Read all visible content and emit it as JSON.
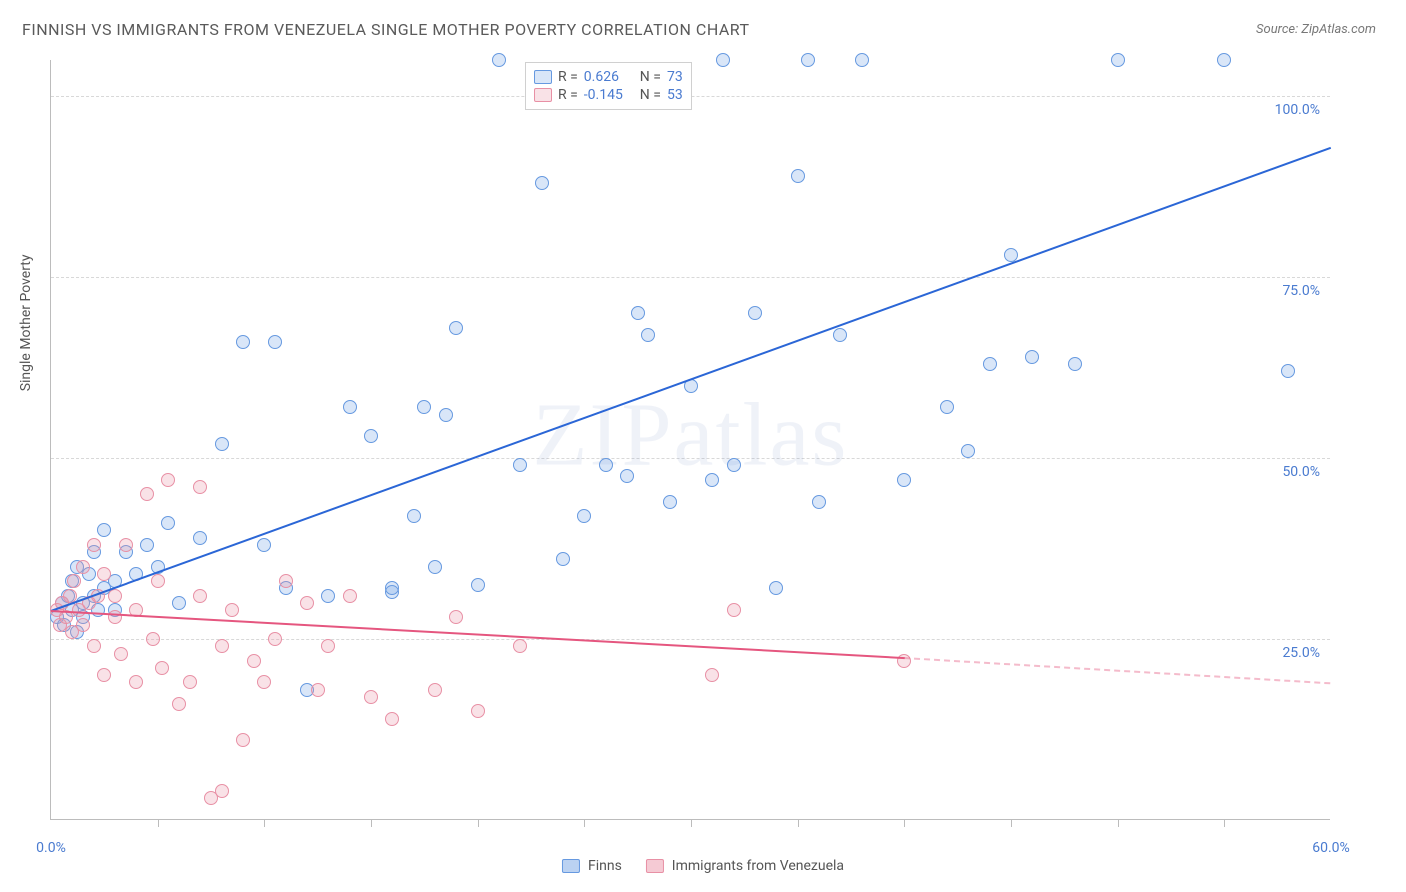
{
  "title": "FINNISH VS IMMIGRANTS FROM VENEZUELA SINGLE MOTHER POVERTY CORRELATION CHART",
  "source": "Source: ZipAtlas.com",
  "watermark": "ZIPatlas",
  "chart": {
    "type": "scatter",
    "xlim": [
      0,
      60
    ],
    "ylim": [
      0,
      105
    ],
    "xlabel_min": "0.0%",
    "xlabel_max": "60.0%",
    "xtick_positions": [
      5,
      10,
      15,
      20,
      25,
      30,
      35,
      40,
      45,
      50,
      55
    ],
    "yticks": [
      {
        "v": 25,
        "label": "25.0%"
      },
      {
        "v": 50,
        "label": "50.0%"
      },
      {
        "v": 75,
        "label": "75.0%"
      },
      {
        "v": 100,
        "label": "100.0%"
      }
    ],
    "y_axis_title": "Single Mother Poverty",
    "background_color": "#ffffff",
    "grid_color": "#d8d8d8",
    "marker_radius": 7,
    "marker_stroke": 1.5,
    "marker_fill_opacity": 0.25,
    "series": [
      {
        "name": "Finns",
        "color_stroke": "#6699e0",
        "color_fill": "rgba(120,165,230,0.28)",
        "trend_color": "#2b66d6",
        "R": "0.626",
        "N": "73",
        "trend": {
          "x1": 0,
          "y1": 29,
          "x2": 60,
          "y2": 93
        },
        "points": [
          [
            0.3,
            28
          ],
          [
            0.5,
            30
          ],
          [
            0.6,
            27
          ],
          [
            0.8,
            31
          ],
          [
            1,
            33
          ],
          [
            1,
            29
          ],
          [
            1.2,
            26
          ],
          [
            1.2,
            35
          ],
          [
            1.5,
            30
          ],
          [
            1.5,
            28
          ],
          [
            1.8,
            34
          ],
          [
            2,
            31
          ],
          [
            2,
            37
          ],
          [
            2.2,
            29
          ],
          [
            2.5,
            32
          ],
          [
            2.5,
            40
          ],
          [
            3,
            33
          ],
          [
            3,
            29
          ],
          [
            3.5,
            37
          ],
          [
            4,
            34
          ],
          [
            4.5,
            38
          ],
          [
            5,
            35
          ],
          [
            5.5,
            41
          ],
          [
            6,
            30
          ],
          [
            7,
            39
          ],
          [
            8,
            52
          ],
          [
            9,
            66
          ],
          [
            10,
            38
          ],
          [
            10.5,
            66
          ],
          [
            11,
            32
          ],
          [
            12,
            18
          ],
          [
            13,
            31
          ],
          [
            14,
            57
          ],
          [
            15,
            53
          ],
          [
            16,
            31.5
          ],
          [
            16,
            32
          ],
          [
            17,
            42
          ],
          [
            17.5,
            57
          ],
          [
            18,
            35
          ],
          [
            18.5,
            56
          ],
          [
            19,
            68
          ],
          [
            20,
            32.5
          ],
          [
            21,
            105
          ],
          [
            22,
            49
          ],
          [
            23,
            88
          ],
          [
            24,
            36
          ],
          [
            25,
            42
          ],
          [
            26,
            49
          ],
          [
            27,
            47.5
          ],
          [
            27.5,
            70
          ],
          [
            28,
            67
          ],
          [
            29,
            44
          ],
          [
            30,
            60
          ],
          [
            31,
            47
          ],
          [
            31.5,
            105
          ],
          [
            32,
            49
          ],
          [
            33,
            70
          ],
          [
            34,
            32
          ],
          [
            35,
            89
          ],
          [
            35.5,
            105
          ],
          [
            36,
            44
          ],
          [
            37,
            67
          ],
          [
            38,
            105
          ],
          [
            40,
            47
          ],
          [
            42,
            57
          ],
          [
            43,
            51
          ],
          [
            44,
            63
          ],
          [
            45,
            78
          ],
          [
            46,
            64
          ],
          [
            48,
            63
          ],
          [
            50,
            105
          ],
          [
            55,
            105
          ],
          [
            58,
            62
          ]
        ]
      },
      {
        "name": "Immigrants from Venezuela",
        "color_stroke": "#e890a5",
        "color_fill": "rgba(235,150,170,0.28)",
        "trend_color": "#e5567f",
        "R": "-0.145",
        "N": "53",
        "trend": {
          "x1": 0,
          "y1": 29,
          "x2": 40,
          "y2": 22.5
        },
        "trend_extrapolate": {
          "x1": 40,
          "y1": 22.5,
          "x2": 60,
          "y2": 19
        },
        "points": [
          [
            0.3,
            29
          ],
          [
            0.4,
            27
          ],
          [
            0.5,
            30
          ],
          [
            0.7,
            28
          ],
          [
            0.9,
            31
          ],
          [
            1,
            26
          ],
          [
            1.1,
            33
          ],
          [
            1.3,
            29
          ],
          [
            1.5,
            35
          ],
          [
            1.5,
            27
          ],
          [
            1.8,
            30
          ],
          [
            2,
            24
          ],
          [
            2,
            38
          ],
          [
            2.2,
            31
          ],
          [
            2.5,
            34
          ],
          [
            2.5,
            20
          ],
          [
            3,
            28
          ],
          [
            3,
            31
          ],
          [
            3.3,
            23
          ],
          [
            3.5,
            38
          ],
          [
            4,
            29
          ],
          [
            4,
            19
          ],
          [
            4.5,
            45
          ],
          [
            4.8,
            25
          ],
          [
            5,
            33
          ],
          [
            5.2,
            21
          ],
          [
            5.5,
            47
          ],
          [
            6,
            16
          ],
          [
            6.5,
            19
          ],
          [
            7,
            31
          ],
          [
            7,
            46
          ],
          [
            7.5,
            3
          ],
          [
            8,
            24
          ],
          [
            8,
            4
          ],
          [
            8.5,
            29
          ],
          [
            9,
            11
          ],
          [
            9.5,
            22
          ],
          [
            10,
            19
          ],
          [
            10.5,
            25
          ],
          [
            11,
            33
          ],
          [
            12,
            30
          ],
          [
            12.5,
            18
          ],
          [
            13,
            24
          ],
          [
            14,
            31
          ],
          [
            15,
            17
          ],
          [
            16,
            14
          ],
          [
            18,
            18
          ],
          [
            19,
            28
          ],
          [
            20,
            15
          ],
          [
            22,
            24
          ],
          [
            31,
            20
          ],
          [
            32,
            29
          ],
          [
            40,
            22
          ]
        ]
      }
    ]
  },
  "legend_top": {
    "r_label": "R =",
    "n_label": "N ="
  },
  "legend_bottom": [
    {
      "swatch_fill": "rgba(120,165,230,0.5)",
      "swatch_stroke": "#6699e0",
      "label": "Finns"
    },
    {
      "swatch_fill": "rgba(235,150,170,0.5)",
      "swatch_stroke": "#e890a5",
      "label": "Immigrants from Venezuela"
    }
  ]
}
